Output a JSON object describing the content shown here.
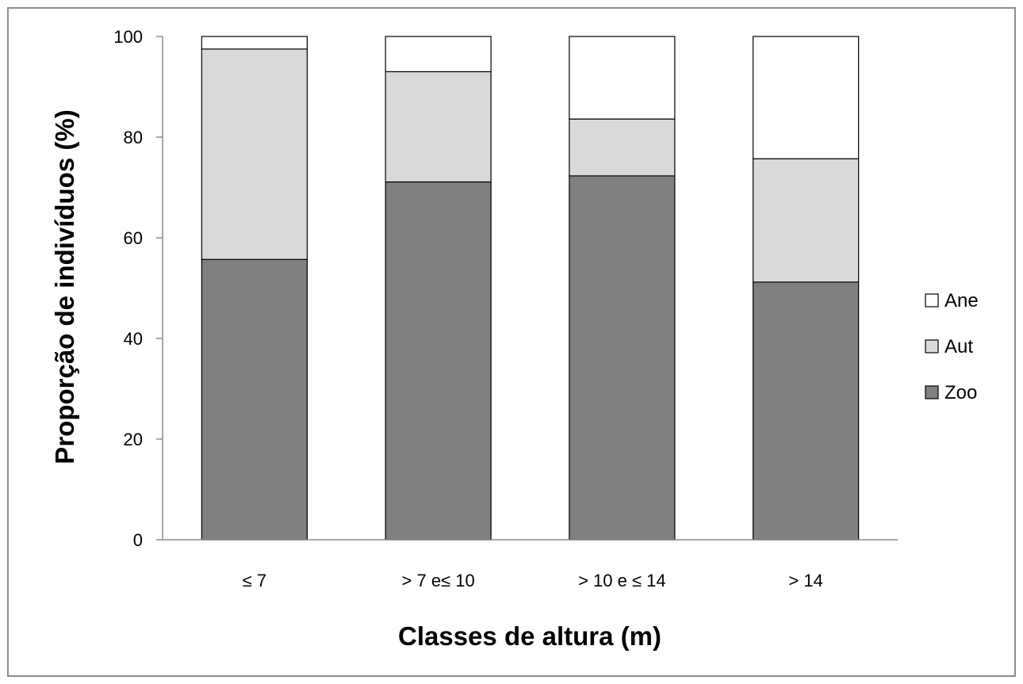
{
  "chart_data": {
    "type": "bar",
    "stacked": true,
    "categories": [
      "≤ 7",
      "> 7 e≤  10",
      "> 10 e ≤ 14",
      "> 14"
    ],
    "series": [
      {
        "name": "Zoo",
        "values": [
          55.7,
          71.1,
          72.3,
          51.2
        ],
        "color": "#808080"
      },
      {
        "name": "Aut",
        "values": [
          41.8,
          21.9,
          11.3,
          24.5
        ],
        "color": "#d9d9d9"
      },
      {
        "name": "Ane",
        "values": [
          2.5,
          7.0,
          16.4,
          24.3
        ],
        "color": "#ffffff"
      }
    ],
    "legend_order": [
      "Ane",
      "Aut",
      "Zoo"
    ],
    "title": "",
    "xlabel": "Classes de altura (m)",
    "ylabel": "Proporção de indivíduos (%)",
    "ylim": [
      0,
      100
    ],
    "yticks": [
      0,
      20,
      40,
      60,
      80,
      100
    ],
    "grid": false,
    "legend_position": "right"
  }
}
